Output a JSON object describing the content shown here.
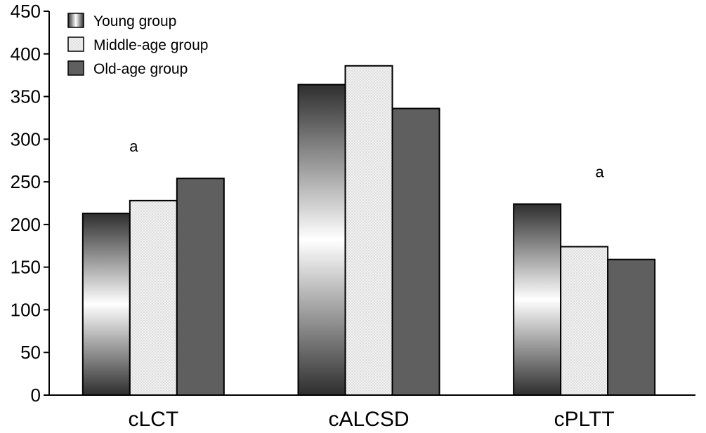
{
  "chart_data": {
    "type": "bar",
    "categories": [
      "cLCT",
      "cALCSD",
      "cPLTT"
    ],
    "series": [
      {
        "name": "Young group",
        "values": [
          213,
          364,
          224
        ]
      },
      {
        "name": "Middle-age group",
        "values": [
          228,
          386,
          174
        ]
      },
      {
        "name": "Old-age group",
        "values": [
          254,
          336,
          159
        ]
      }
    ],
    "ylim": [
      0,
      450
    ],
    "yticks": [
      0,
      50,
      100,
      150,
      200,
      250,
      300,
      350,
      400,
      450
    ],
    "title": "",
    "xlabel": "",
    "ylabel": "",
    "legend_position": "top-left",
    "grid": false,
    "annotations": [
      {
        "text": "a",
        "category": "cLCT"
      },
      {
        "text": "a",
        "category": "cPLTT"
      }
    ],
    "colors": {
      "young_gradient_edge": "#333333",
      "young_gradient_center": "#ffffff",
      "middle_fill": "#ededed",
      "old_fill": "#5f5f5f",
      "bar_stroke": "#000000"
    }
  }
}
